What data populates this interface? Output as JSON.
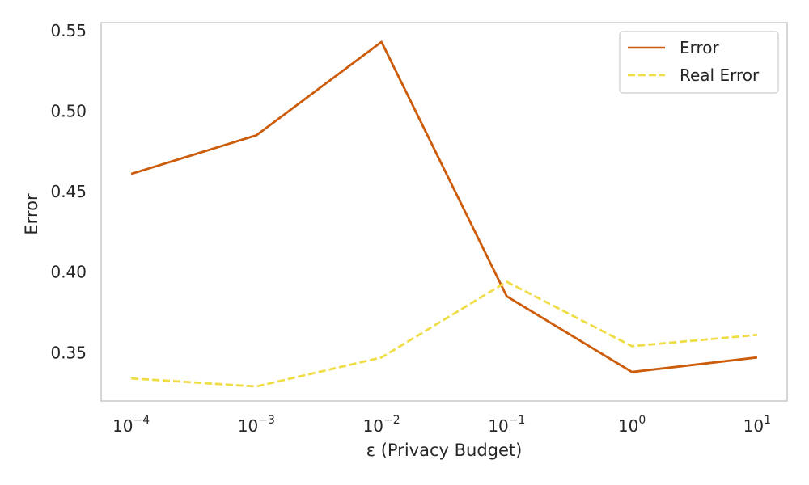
{
  "chart_data": {
    "type": "line",
    "title": "",
    "xlabel": "ε (Privacy Budget)",
    "ylabel": "Error",
    "x_scale": "log",
    "x": [
      0.0001,
      0.001,
      0.01,
      0.1,
      1,
      10
    ],
    "x_tick_labels": [
      {
        "base": "10",
        "exp": "−4"
      },
      {
        "base": "10",
        "exp": "−3"
      },
      {
        "base": "10",
        "exp": "−2"
      },
      {
        "base": "10",
        "exp": "−1"
      },
      {
        "base": "10",
        "exp": "0"
      },
      {
        "base": "10",
        "exp": "1"
      }
    ],
    "y_ticks": [
      0.35,
      0.4,
      0.45,
      0.5,
      0.55
    ],
    "y_tick_labels": [
      "0.35",
      "0.40",
      "0.45",
      "0.50",
      "0.55"
    ],
    "ylim": [
      0.32,
      0.555
    ],
    "xlim_log10": [
      -4.24,
      1.24
    ],
    "grid": false,
    "legend_position": "top-right",
    "series": [
      {
        "name": "Error",
        "color": "#cc5c0a",
        "dash": "solid",
        "values": [
          0.461,
          0.485,
          0.543,
          0.385,
          0.338,
          0.347
        ]
      },
      {
        "name": "Real Error",
        "color": "#efdd45",
        "dash": "dashed",
        "values": [
          0.334,
          0.329,
          0.347,
          0.394,
          0.354,
          0.361
        ]
      }
    ]
  }
}
